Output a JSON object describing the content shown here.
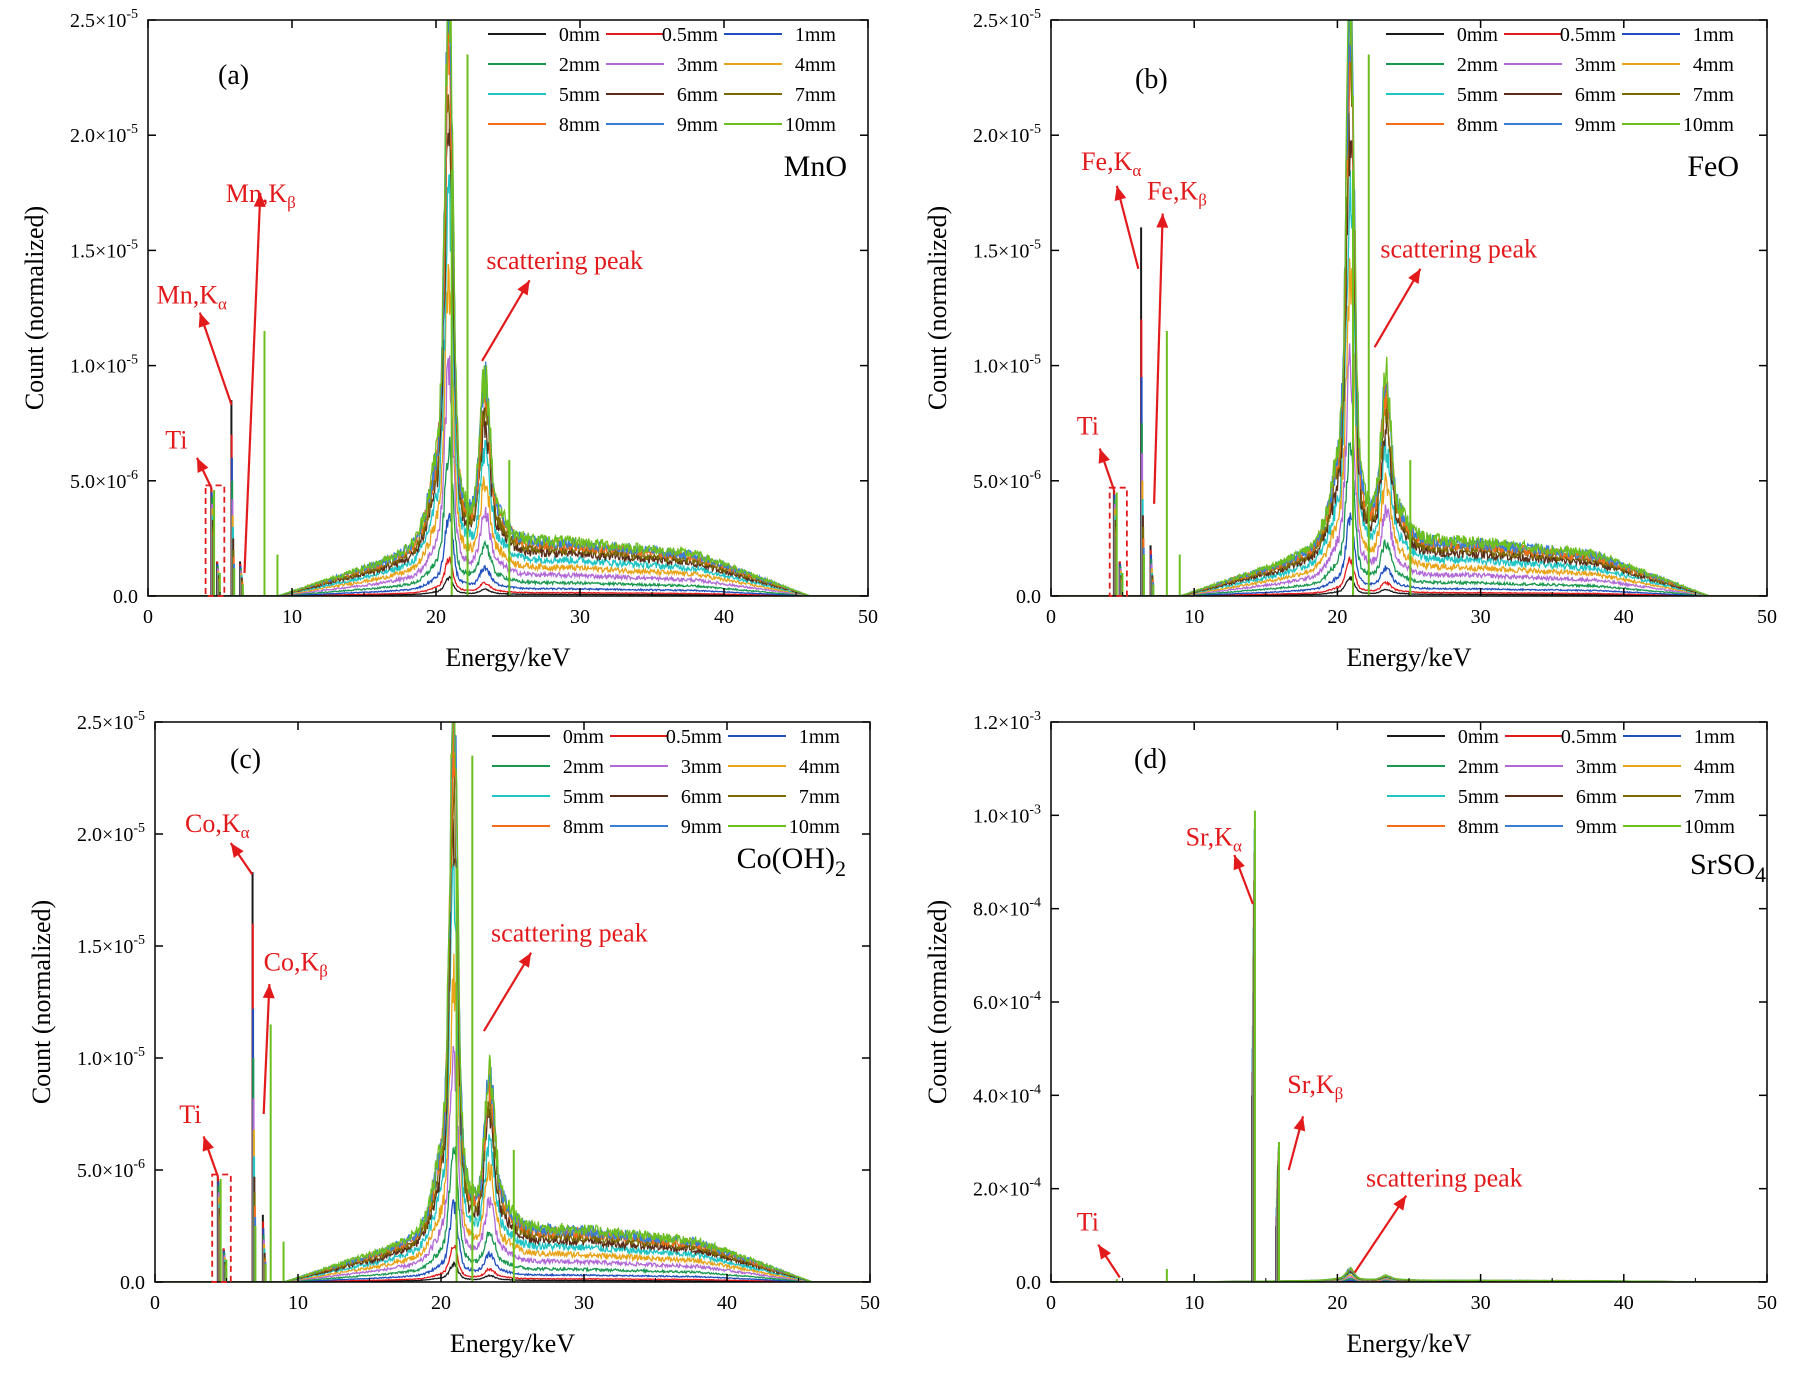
{
  "figure": {
    "background": "#ffffff",
    "annotation_color": "#e31a1c"
  },
  "legend_order": [
    "0mm",
    "0.5mm",
    "1mm",
    "2mm",
    "3mm",
    "4mm",
    "5mm",
    "6mm",
    "7mm",
    "8mm",
    "9mm",
    "10mm"
  ],
  "series_colors": {
    "0mm": "#1a1a1a",
    "0.5mm": "#e31a1c",
    "1mm": "#1f4fbf",
    "2mm": "#1a9850",
    "3mm": "#b169d6",
    "4mm": "#e8a317",
    "5mm": "#1fc4c4",
    "6mm": "#5a2d1a",
    "7mm": "#7a6a00",
    "8mm": "#f26c1b",
    "9mm": "#3a7dd8",
    "10mm": "#6bbf1f"
  },
  "chart_data": [
    {
      "id": "a",
      "type": "line",
      "panel_label": "(a)",
      "compound": "MnO",
      "compound_sub": "",
      "xlabel": "Energy/keV",
      "ylabel": "Count (normalized)",
      "xlim": [
        0,
        50
      ],
      "ylim": [
        0,
        2.5e-05
      ],
      "xticks": [
        0,
        10,
        20,
        30,
        40,
        50
      ],
      "yticks": [
        {
          "value": 0,
          "mant": "0.0",
          "exp": ""
        },
        {
          "value": 5e-06,
          "mant": "5.0×10",
          "exp": "-6"
        },
        {
          "value": 1e-05,
          "mant": "1.0×10",
          "exp": "-5"
        },
        {
          "value": 1.5e-05,
          "mant": "1.5×10",
          "exp": "-5"
        },
        {
          "value": 2e-05,
          "mant": "2.0×10",
          "exp": "-5"
        },
        {
          "value": 2.5e-05,
          "mant": "2.5×10",
          "exp": "-5"
        }
      ],
      "legend": [
        "0mm",
        "0.5mm",
        "1mm",
        "2mm",
        "3mm",
        "4mm",
        "5mm",
        "6mm",
        "7mm",
        "8mm",
        "9mm",
        "10mm"
      ],
      "peak_at_10mm": {
        "scatter1": 1.93e-05,
        "scatter2": 7e-06,
        "continuum": 2.6e-06
      },
      "lines": [
        {
          "x": 4.5,
          "heights": [
            4.7e-06,
            4.7e-06,
            4.5e-06,
            4.3e-06,
            4e-06,
            3.8e-06,
            3.5e-06,
            3.3e-06,
            3e-06,
            2.8e-06,
            2.6e-06,
            4.6e-06
          ]
        },
        {
          "x": 4.9,
          "heights": [
            1.5e-06,
            1.5e-06,
            1.4e-06,
            1.3e-06,
            1.2e-06,
            1.1e-06,
            1e-06,
            9e-07,
            8e-07,
            7e-07,
            6e-07,
            1e-06
          ]
        },
        {
          "x": 5.9,
          "heights": [
            8.5e-06,
            7e-06,
            6e-06,
            5e-06,
            4.2e-06,
            3.5e-06,
            3e-06,
            2.5e-06,
            2e-06,
            1.7e-06,
            1.4e-06,
            1.2e-06
          ]
        },
        {
          "x": 6.5,
          "heights": [
            1.5e-06,
            1.4e-06,
            1.3e-06,
            1.2e-06,
            1.1e-06,
            1e-06,
            9e-07,
            8e-07,
            7e-07,
            6e-07,
            5e-07,
            5e-07
          ]
        },
        {
          "x": 8.0,
          "heights": [
            0,
            0,
            0,
            0,
            0,
            0,
            0,
            0,
            0,
            0,
            0,
            1.15e-05
          ]
        },
        {
          "x": 8.9,
          "heights": [
            0,
            0,
            0,
            0,
            0,
            0,
            0,
            0,
            0,
            0,
            0,
            1.8e-06
          ]
        },
        {
          "x": 22.1,
          "heights": [
            0,
            0,
            0,
            0,
            0,
            0,
            0,
            0,
            0,
            0,
            0,
            2.35e-05
          ]
        },
        {
          "x": 21.0,
          "heights": [
            0,
            0,
            0,
            0,
            0,
            0,
            0,
            0,
            0,
            0,
            0,
            1.85e-05
          ]
        },
        {
          "x": 25.0,
          "heights": [
            0,
            0,
            0,
            0,
            0,
            0,
            0,
            0,
            0,
            0,
            0,
            5.9e-06
          ]
        }
      ],
      "annotations": [
        {
          "id": "ka",
          "text": "Mn,K",
          "greek": "α",
          "tx": 0.6,
          "ty": 1.27e-05,
          "ax": 5.8,
          "ay": 8.3e-06,
          "hx": 3.6,
          "hy": 1.23e-05
        },
        {
          "id": "kb",
          "text": "Mn,K",
          "greek": "β",
          "tx": 5.4,
          "ty": 1.71e-05,
          "ax": 6.7,
          "ay": 1e-06,
          "hx": 7.8,
          "hy": 1.75e-05
        },
        {
          "id": "ti",
          "text": "Ti",
          "greek": "",
          "tx": 1.2,
          "ty": 6.4e-06,
          "ax": 4.4,
          "ay": 4.7e-06,
          "hx": 3.4,
          "hy": 6e-06
        },
        {
          "id": "sc",
          "text": "scattering peak",
          "greek": "",
          "tx": 23.5,
          "ty": 1.42e-05,
          "ax": 23.2,
          "ay": 1.02e-05,
          "hx": 26.5,
          "hy": 1.37e-05
        }
      ],
      "box": {
        "x0": 4.0,
        "x1": 5.3,
        "y0": 0,
        "y1": 4.8e-06
      }
    },
    {
      "id": "b",
      "type": "line",
      "panel_label": "(b)",
      "compound": "FeO",
      "compound_sub": "",
      "xlabel": "Energy/keV",
      "ylabel": "Count (normalized)",
      "xlim": [
        0,
        50
      ],
      "ylim": [
        0,
        2.5e-05
      ],
      "xticks": [
        0,
        10,
        20,
        30,
        40,
        50
      ],
      "yticks": [
        {
          "value": 0,
          "mant": "0.0",
          "exp": ""
        },
        {
          "value": 5e-06,
          "mant": "5.0×10",
          "exp": "-6"
        },
        {
          "value": 1e-05,
          "mant": "1.0×10",
          "exp": "-5"
        },
        {
          "value": 1.5e-05,
          "mant": "1.5×10",
          "exp": "-5"
        },
        {
          "value": 2e-05,
          "mant": "2.0×10",
          "exp": "-5"
        },
        {
          "value": 2.5e-05,
          "mant": "2.5×10",
          "exp": "-5"
        }
      ],
      "legend": [
        "0mm",
        "0.5mm",
        "1mm",
        "2mm",
        "3mm",
        "4mm",
        "5mm",
        "6mm",
        "7mm",
        "8mm",
        "9mm",
        "10mm"
      ],
      "peak_at_10mm": {
        "scatter1": 1.93e-05,
        "scatter2": 7e-06,
        "continuum": 2.6e-06
      },
      "lines": [
        {
          "x": 4.5,
          "heights": [
            4.6e-06,
            4.6e-06,
            4.4e-06,
            4.2e-06,
            4e-06,
            3.8e-06,
            3.5e-06,
            3.3e-06,
            3e-06,
            2.8e-06,
            2.6e-06,
            4.5e-06
          ]
        },
        {
          "x": 4.9,
          "heights": [
            1.5e-06,
            1.5e-06,
            1.4e-06,
            1.3e-06,
            1.2e-06,
            1.1e-06,
            1e-06,
            9e-07,
            8e-07,
            7e-07,
            6e-07,
            1e-06
          ]
        },
        {
          "x": 6.4,
          "heights": [
            1.6e-05,
            1.2e-05,
            9.5e-06,
            7.5e-06,
            6.2e-06,
            5e-06,
            4.2e-06,
            3.5e-06,
            3e-06,
            2.5e-06,
            2.1e-06,
            1.8e-06
          ]
        },
        {
          "x": 7.06,
          "heights": [
            2.2e-06,
            2e-06,
            1.8e-06,
            1.6e-06,
            1.4e-06,
            1.2e-06,
            1e-06,
            9e-07,
            8e-07,
            7e-07,
            6e-07,
            5e-07
          ]
        },
        {
          "x": 8.0,
          "heights": [
            0,
            0,
            0,
            0,
            0,
            0,
            0,
            0,
            0,
            0,
            0,
            1.15e-05
          ]
        },
        {
          "x": 8.9,
          "heights": [
            0,
            0,
            0,
            0,
            0,
            0,
            0,
            0,
            0,
            0,
            0,
            1.8e-06
          ]
        },
        {
          "x": 22.1,
          "heights": [
            0,
            0,
            0,
            0,
            0,
            0,
            0,
            0,
            0,
            0,
            0,
            2.35e-05
          ]
        },
        {
          "x": 21.0,
          "heights": [
            0,
            0,
            0,
            0,
            0,
            0,
            0,
            0,
            0,
            0,
            0,
            1.85e-05
          ]
        },
        {
          "x": 25.0,
          "heights": [
            0,
            0,
            0,
            0,
            0,
            0,
            0,
            0,
            0,
            0,
            0,
            5.9e-06
          ]
        }
      ],
      "annotations": [
        {
          "id": "ka",
          "text": "Fe,K",
          "greek": "α",
          "tx": 2.1,
          "ty": 1.85e-05,
          "ax": 6.1,
          "ay": 1.42e-05,
          "hx": 4.6,
          "hy": 1.78e-05
        },
        {
          "id": "kb",
          "text": "Fe,K",
          "greek": "β",
          "tx": 6.7,
          "ty": 1.72e-05,
          "ax": 7.2,
          "ay": 4e-06,
          "hx": 7.8,
          "hy": 1.66e-05
        },
        {
          "id": "ti",
          "text": "Ti",
          "greek": "",
          "tx": 1.8,
          "ty": 7e-06,
          "ax": 4.4,
          "ay": 4.6e-06,
          "hx": 3.4,
          "hy": 6.4e-06
        },
        {
          "id": "sc",
          "text": "scattering peak",
          "greek": "",
          "tx": 23.0,
          "ty": 1.47e-05,
          "ax": 22.6,
          "ay": 1.08e-05,
          "hx": 25.8,
          "hy": 1.42e-05
        }
      ],
      "box": {
        "x0": 4.1,
        "x1": 5.3,
        "y0": 0,
        "y1": 4.7e-06
      }
    },
    {
      "id": "c",
      "type": "line",
      "panel_label": "(c)",
      "compound": "Co(OH)",
      "compound_sub": "2",
      "xlabel": "Energy/keV",
      "ylabel": "Count (normalized)",
      "xlim": [
        0,
        50
      ],
      "ylim": [
        0,
        2.5e-05
      ],
      "xticks": [
        0,
        10,
        20,
        30,
        40,
        50
      ],
      "yticks": [
        {
          "value": 0,
          "mant": "0.0",
          "exp": ""
        },
        {
          "value": 5e-06,
          "mant": "5.0×10",
          "exp": "-6"
        },
        {
          "value": 1e-05,
          "mant": "1.0×10",
          "exp": "-5"
        },
        {
          "value": 1.5e-05,
          "mant": "1.5×10",
          "exp": "-5"
        },
        {
          "value": 2e-05,
          "mant": "2.0×10",
          "exp": "-5"
        },
        {
          "value": 2.5e-05,
          "mant": "2.5×10",
          "exp": "-5"
        }
      ],
      "legend": [
        "0mm",
        "0.5mm",
        "1mm",
        "2mm",
        "3mm",
        "4mm",
        "5mm",
        "6mm",
        "7mm",
        "8mm",
        "9mm",
        "10mm"
      ],
      "peak_at_10mm": {
        "scatter1": 1.93e-05,
        "scatter2": 7e-06,
        "continuum": 2.6e-06
      },
      "lines": [
        {
          "x": 4.5,
          "heights": [
            4.7e-06,
            4.7e-06,
            4.5e-06,
            4.3e-06,
            4e-06,
            3.8e-06,
            3.5e-06,
            3.3e-06,
            3e-06,
            2.8e-06,
            2.6e-06,
            4.6e-06
          ]
        },
        {
          "x": 4.9,
          "heights": [
            1.5e-06,
            1.5e-06,
            1.4e-06,
            1.3e-06,
            1.2e-06,
            1.1e-06,
            1e-06,
            9e-07,
            8e-07,
            7e-07,
            6e-07,
            1e-06
          ]
        },
        {
          "x": 6.93,
          "heights": [
            1.83e-05,
            1.6e-05,
            1.22e-05,
            1e-05,
            8.2e-06,
            6.8e-06,
            5.6e-06,
            4.7e-06,
            4e-06,
            3.4e-06,
            2.9e-06,
            2.5e-06
          ]
        },
        {
          "x": 7.65,
          "heights": [
            3e-06,
            2.7e-06,
            2.4e-06,
            2.1e-06,
            1.9e-06,
            1.7e-06,
            1.5e-06,
            1.3e-06,
            1.1e-06,
            1e-06,
            9e-07,
            8e-07
          ]
        },
        {
          "x": 8.0,
          "heights": [
            0,
            0,
            0,
            0,
            0,
            0,
            0,
            0,
            0,
            0,
            0,
            1.15e-05
          ]
        },
        {
          "x": 8.9,
          "heights": [
            0,
            0,
            0,
            0,
            0,
            0,
            0,
            0,
            0,
            0,
            0,
            1.8e-06
          ]
        },
        {
          "x": 22.1,
          "heights": [
            0,
            0,
            0,
            0,
            0,
            0,
            0,
            0,
            0,
            0,
            0,
            2.35e-05
          ]
        },
        {
          "x": 21.0,
          "heights": [
            0,
            0,
            0,
            0,
            0,
            0,
            0,
            0,
            0,
            0,
            0,
            1.85e-05
          ]
        },
        {
          "x": 25.0,
          "heights": [
            0,
            0,
            0,
            0,
            0,
            0,
            0,
            0,
            0,
            0,
            0,
            5.9e-06
          ]
        }
      ],
      "annotations": [
        {
          "id": "ka",
          "text": "Co,K",
          "greek": "α",
          "tx": 2.1,
          "ty": 2.01e-05,
          "ax": 6.8,
          "ay": 1.82e-05,
          "hx": 5.3,
          "hy": 1.96e-05
        },
        {
          "id": "kb",
          "text": "Co,K",
          "greek": "β",
          "tx": 7.6,
          "ty": 1.39e-05,
          "ax": 7.6,
          "ay": 7.5e-06,
          "hx": 8.0,
          "hy": 1.33e-05
        },
        {
          "id": "ti",
          "text": "Ti",
          "greek": "",
          "tx": 1.7,
          "ty": 7.1e-06,
          "ax": 4.4,
          "ay": 4.7e-06,
          "hx": 3.4,
          "hy": 6.5e-06
        },
        {
          "id": "sc",
          "text": "scattering peak",
          "greek": "",
          "tx": 23.5,
          "ty": 1.52e-05,
          "ax": 23.0,
          "ay": 1.12e-05,
          "hx": 26.3,
          "hy": 1.47e-05
        }
      ],
      "box": {
        "x0": 4.0,
        "x1": 5.3,
        "y0": 0,
        "y1": 4.8e-06
      }
    },
    {
      "id": "d",
      "type": "line",
      "panel_label": "(d)",
      "compound": "SrSO",
      "compound_sub": "4",
      "xlabel": "Energy/keV",
      "ylabel": "Count (normalized)",
      "xlim": [
        0,
        50
      ],
      "ylim": [
        0,
        0.0012
      ],
      "xticks": [
        0,
        10,
        20,
        30,
        40,
        50
      ],
      "yticks": [
        {
          "value": 0,
          "mant": "0.0",
          "exp": ""
        },
        {
          "value": 0.0002,
          "mant": "2.0×10",
          "exp": "-4"
        },
        {
          "value": 0.0004,
          "mant": "4.0×10",
          "exp": "-4"
        },
        {
          "value": 0.0006,
          "mant": "6.0×10",
          "exp": "-4"
        },
        {
          "value": 0.0008,
          "mant": "8.0×10",
          "exp": "-4"
        },
        {
          "value": 0.001,
          "mant": "1.0×10",
          "exp": "-3"
        },
        {
          "value": 0.0012,
          "mant": "1.2×10",
          "exp": "-3"
        }
      ],
      "legend": [
        "0mm",
        "0.5mm",
        "1mm",
        "2mm",
        "3mm",
        "4mm",
        "5mm",
        "6mm",
        "7mm",
        "8mm",
        "9mm",
        "10mm"
      ],
      "peak_at_10mm": {
        "scatter1": 2e-05,
        "scatter2": 1e-05,
        "continuum": 4e-06
      },
      "lines": [
        {
          "x": 14.15,
          "heights": [
            0.0004,
            0.00045,
            0.0005,
            0.00055,
            0.00062,
            0.0007,
            0.00076,
            0.00081,
            0.00086,
            0.00092,
            0.00097,
            0.00101
          ]
        },
        {
          "x": 15.83,
          "heights": [
            0.00012,
            0.00014,
            0.00016,
            0.00018,
            0.0002,
            0.00022,
            0.00024,
            0.00025,
            0.00026,
            0.00028,
            0.00029,
            0.0003
          ]
        },
        {
          "x": 8.0,
          "heights": [
            0,
            0,
            0,
            0,
            0,
            0,
            0,
            0,
            0,
            0,
            0,
            2.8e-05
          ]
        },
        {
          "x": 4.5,
          "heights": [
            0,
            0,
            0,
            0,
            0,
            0,
            0,
            0,
            0,
            0,
            0,
            6e-06
          ]
        }
      ],
      "annotations": [
        {
          "id": "ka",
          "text": "Sr,K",
          "greek": "α",
          "tx": 9.4,
          "ty": 0.000935,
          "ax": 14.1,
          "ay": 0.00081,
          "hx": 12.8,
          "hy": 0.000915
        },
        {
          "id": "kb",
          "text": "Sr,K",
          "greek": "β",
          "tx": 16.5,
          "ty": 0.000405,
          "ax": 16.6,
          "ay": 0.00024,
          "hx": 17.6,
          "hy": 0.000355
        },
        {
          "id": "ti",
          "text": "Ti",
          "greek": "",
          "tx": 1.8,
          "ty": 0.00011,
          "ax": 4.8,
          "ay": 1e-05,
          "hx": 3.3,
          "hy": 8e-05
        },
        {
          "id": "sc",
          "text": "scattering peak",
          "greek": "",
          "tx": 22.0,
          "ty": 0.000205,
          "ax": 21.2,
          "ay": 2e-05,
          "hx": 24.8,
          "hy": 0.000185
        }
      ],
      "box": null
    }
  ]
}
